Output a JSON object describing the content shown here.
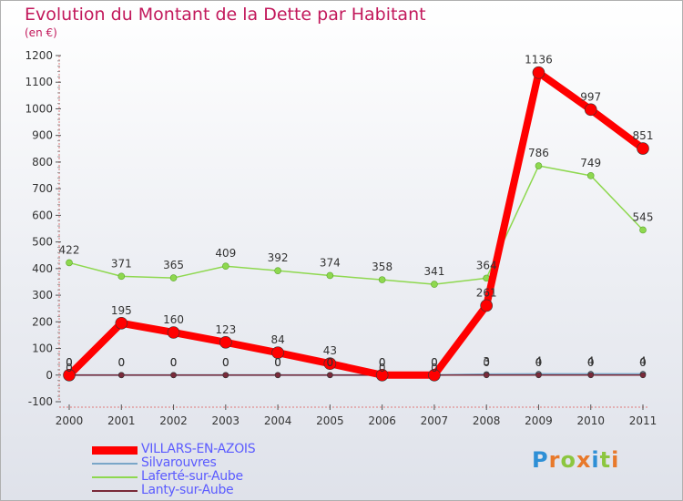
{
  "title": "Evolution du Montant de la Dette par Habitant",
  "unit": "(en €)",
  "logo": {
    "text": "Proxiti",
    "letter_colors": [
      "#2e8fd6",
      "#e8792b",
      "#8cc63f",
      "#e8792b",
      "#2e8fd6",
      "#8cc63f",
      "#e8792b"
    ]
  },
  "chart_data": {
    "type": "line",
    "x": [
      "2000",
      "2001",
      "2002",
      "2003",
      "2004",
      "2005",
      "2006",
      "2007",
      "2008",
      "2009",
      "2010",
      "2011"
    ],
    "ylim": [
      -100,
      1200
    ],
    "yticks": [
      -100,
      0,
      100,
      200,
      300,
      400,
      500,
      600,
      700,
      800,
      900,
      1000,
      1100,
      1200
    ],
    "grid": false,
    "legend_position": "bottom",
    "series": [
      {
        "name": "VILLARS-EN-AZOIS",
        "color": "#ff0000",
        "values": [
          0,
          195,
          160,
          123,
          84,
          43,
          0,
          0,
          261,
          1136,
          997,
          851
        ]
      },
      {
        "name": "Silvarouvres",
        "color": "#7aa6c8",
        "values": [
          0,
          0,
          0,
          0,
          0,
          0,
          0,
          0,
          3,
          4,
          4,
          4
        ]
      },
      {
        "name": "Laferté-sur-Aube",
        "color": "#8ed84f",
        "values": [
          422,
          371,
          365,
          409,
          392,
          374,
          358,
          341,
          364,
          786,
          749,
          545
        ]
      },
      {
        "name": "Lanty-sur-Aube",
        "color": "#7a2a3a",
        "values": [
          0,
          0,
          0,
          0,
          0,
          0,
          0,
          0,
          0,
          0,
          0,
          0
        ]
      }
    ]
  }
}
